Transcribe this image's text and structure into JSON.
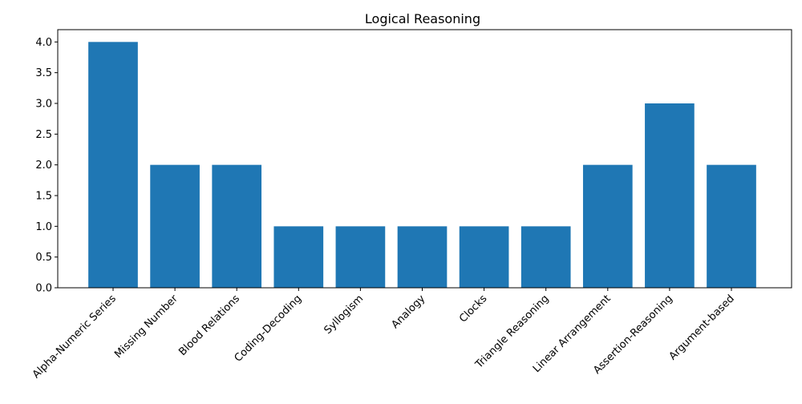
{
  "chart_data": {
    "type": "bar",
    "title": "Logical Reasoning",
    "xlabel": "",
    "ylabel": "",
    "categories": [
      "Alpha-Numeric Series",
      "Missing Number",
      "Blood Relations",
      "Coding-Decoding",
      "Syllogism",
      "Analogy",
      "Clocks",
      "Triangle Reasoning",
      "Linear Arrangement",
      "Assertion-Reasoning",
      "Argument-based"
    ],
    "values": [
      4,
      2,
      2,
      1,
      1,
      1,
      1,
      1,
      2,
      3,
      2
    ],
    "ylim": [
      0,
      4.2
    ],
    "yticks": [
      "0.0",
      "0.5",
      "1.0",
      "1.5",
      "2.0",
      "2.5",
      "3.0",
      "3.5",
      "4.0"
    ],
    "grid": false,
    "bar_color": "#1f77b4"
  }
}
